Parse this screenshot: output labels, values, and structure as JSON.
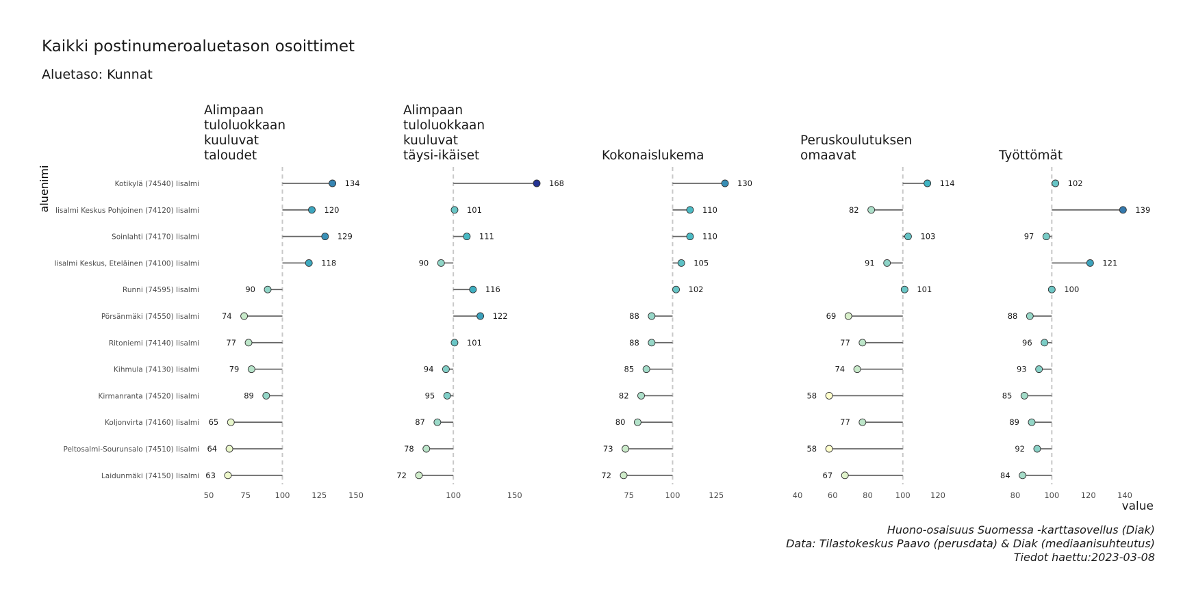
{
  "title": "Kaikki postinumeroaluetason osoittimet",
  "subtitle": "Aluetaso: Kunnat",
  "caption": [
    "Huono-osaisuus Suomessa -karttasovellus (Diak)",
    "Data: Tilastokeskus Paavo (perusdata) & Diak (mediaanisuhteutus)",
    "Tiedot haettu:2023-03-08"
  ],
  "chart_data": {
    "type": "lollipop",
    "ylabel": "aluenimi",
    "xlabel": "value",
    "reference_value": 100,
    "categories": [
      "Kotikylä (74540) Iisalmi",
      "Iisalmi Keskus Pohjoinen (74120) Iisalmi",
      "Soinlahti (74170) Iisalmi",
      "Iisalmi Keskus, Eteläinen (74100) Iisalmi",
      "Runni (74595) Iisalmi",
      "Pörsänmäki (74550) Iisalmi",
      "Ritoniemi (74140) Iisalmi",
      "Kihmula (74130) Iisalmi",
      "Kirmanranta (74520) Iisalmi",
      "Koljonvirta (74160) Iisalmi",
      "Peltosalmi-Sourunsalo (74510) Iisalmi",
      "Laidunmäki (74150) Iisalmi"
    ],
    "color_scale": {
      "low": "#ffffcc",
      "mid": "#41b6c4",
      "high": "#253494",
      "min": 58,
      "max": 168
    },
    "panels": [
      {
        "title": [
          "Alimpaan",
          "tuloluokkaan",
          "kuuluvat",
          "taloudet"
        ],
        "xlim": [
          50,
          150
        ],
        "ticks": [
          50,
          75,
          100,
          125,
          150
        ],
        "values": [
          134,
          120,
          129,
          118,
          90,
          74,
          77,
          79,
          89,
          65,
          64,
          63
        ]
      },
      {
        "title": [
          "Alimpaan",
          "tuloluokkaan",
          "kuuluvat",
          "täysi-ikäiset"
        ],
        "xlim": [
          72,
          168
        ],
        "ticks": [
          100,
          150
        ],
        "values": [
          168,
          101,
          111,
          90,
          116,
          122,
          101,
          94,
          95,
          87,
          78,
          72
        ]
      },
      {
        "title": [
          "Kokonaislukema"
        ],
        "xlim": [
          72,
          130
        ],
        "ticks": [
          75,
          100,
          125
        ],
        "values": [
          130,
          110,
          110,
          105,
          102,
          88,
          88,
          85,
          82,
          80,
          73,
          72
        ]
      },
      {
        "title": [
          "Peruskoulutuksen",
          "omaavat"
        ],
        "xlim": [
          40,
          120
        ],
        "ticks": [
          40,
          60,
          80,
          100,
          120
        ],
        "values": [
          114,
          82,
          103,
          91,
          101,
          69,
          77,
          74,
          58,
          77,
          58,
          67
        ]
      },
      {
        "title": [
          "Työttömät"
        ],
        "xlim": [
          80,
          140
        ],
        "ticks": [
          80,
          100,
          120,
          140
        ],
        "values": [
          102,
          139,
          97,
          121,
          100,
          88,
          96,
          93,
          85,
          89,
          92,
          84
        ]
      }
    ]
  }
}
